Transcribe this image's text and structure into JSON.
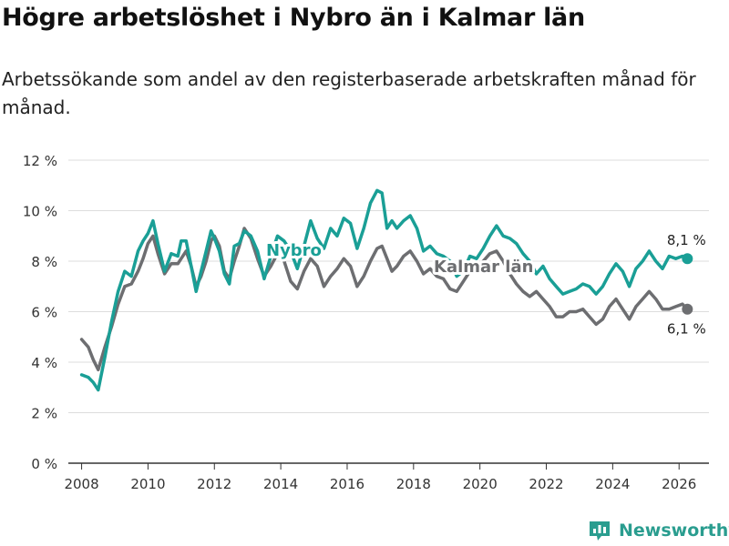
{
  "title": "Högre arbetslöshet i Nybro än i Kalmar län",
  "subtitle": "Arbetssökande som andel av den registerbaserade arbetskraften månad för månad.",
  "brand": {
    "name": "Newsworthy",
    "icon": "bar-chart-logo-icon"
  },
  "colors": {
    "nybro": "#1a9f96",
    "kalmar": "#6d6e71",
    "grid": "#dddddd",
    "text": "#333333"
  },
  "chart_data": {
    "type": "line",
    "title": "Högre arbetslöshet i Nybro än i Kalmar län",
    "xlabel": "",
    "ylabel": "",
    "xlim": [
      2007.6,
      2026.9
    ],
    "ylim": [
      0,
      12
    ],
    "x_ticks": [
      2008,
      2010,
      2012,
      2014,
      2016,
      2018,
      2020,
      2022,
      2024,
      2026
    ],
    "x_tick_labels": [
      "2008",
      "2010",
      "2012",
      "2014",
      "2016",
      "2018",
      "2020",
      "2022",
      "2024",
      "2026"
    ],
    "y_ticks": [
      0,
      2,
      4,
      6,
      8,
      10,
      12
    ],
    "y_tick_labels": [
      "0 %",
      "2 %",
      "4 %",
      "6 %",
      "8 %",
      "10 %",
      "12 %"
    ],
    "grid": true,
    "series": [
      {
        "name": "Nybro",
        "label": "Nybro",
        "end_label": "8,1 %",
        "x": [
          2008.0,
          2008.2,
          2008.35,
          2008.5,
          2008.7,
          2008.9,
          2009.1,
          2009.3,
          2009.5,
          2009.7,
          2009.85,
          2010.0,
          2010.15,
          2010.3,
          2010.5,
          2010.7,
          2010.9,
          2011.0,
          2011.15,
          2011.3,
          2011.45,
          2011.6,
          2011.75,
          2011.9,
          2012.0,
          2012.15,
          2012.3,
          2012.45,
          2012.6,
          2012.75,
          2012.9,
          2013.1,
          2013.3,
          2013.5,
          2013.7,
          2013.9,
          2014.1,
          2014.3,
          2014.5,
          2014.7,
          2014.9,
          2015.1,
          2015.3,
          2015.5,
          2015.7,
          2015.9,
          2016.1,
          2016.3,
          2016.5,
          2016.7,
          2016.9,
          2017.05,
          2017.2,
          2017.35,
          2017.5,
          2017.7,
          2017.9,
          2018.1,
          2018.3,
          2018.5,
          2018.7,
          2018.9,
          2019.1,
          2019.3,
          2019.5,
          2019.7,
          2019.9,
          2020.1,
          2020.3,
          2020.5,
          2020.7,
          2020.9,
          2021.1,
          2021.3,
          2021.5,
          2021.7,
          2021.9,
          2022.1,
          2022.3,
          2022.5,
          2022.7,
          2022.9,
          2023.1,
          2023.3,
          2023.5,
          2023.7,
          2023.9,
          2024.1,
          2024.3,
          2024.5,
          2024.7,
          2024.9,
          2025.1,
          2025.3,
          2025.5,
          2025.7,
          2025.9,
          2026.1,
          2026.25
        ],
        "values": [
          3.5,
          3.4,
          3.2,
          2.9,
          4.2,
          5.6,
          6.8,
          7.6,
          7.4,
          8.4,
          8.8,
          9.1,
          9.6,
          8.7,
          7.6,
          8.3,
          8.2,
          8.8,
          8.8,
          7.8,
          6.8,
          7.6,
          8.4,
          9.2,
          8.9,
          8.4,
          7.5,
          7.1,
          8.6,
          8.7,
          9.2,
          9.0,
          8.4,
          7.3,
          8.2,
          9.0,
          8.8,
          8.4,
          7.7,
          8.6,
          9.6,
          8.9,
          8.5,
          9.3,
          9.0,
          9.7,
          9.5,
          8.5,
          9.3,
          10.3,
          10.8,
          10.7,
          9.3,
          9.6,
          9.3,
          9.6,
          9.8,
          9.3,
          8.4,
          8.6,
          8.3,
          8.2,
          8.0,
          7.4,
          7.6,
          8.2,
          8.1,
          8.5,
          9.0,
          9.4,
          9.0,
          8.9,
          8.7,
          8.3,
          8.0,
          7.5,
          7.8,
          7.3,
          7.0,
          6.7,
          6.8,
          6.9,
          7.1,
          7.0,
          6.7,
          7.0,
          7.5,
          7.9,
          7.6,
          7.0,
          7.7,
          8.0,
          8.4,
          8.0,
          7.7,
          8.2,
          8.1,
          8.2,
          8.1
        ]
      },
      {
        "name": "Kalmar län",
        "label": "Kalmar län",
        "end_label": "6,1 %",
        "x": [
          2008.0,
          2008.2,
          2008.35,
          2008.5,
          2008.7,
          2008.9,
          2009.1,
          2009.3,
          2009.5,
          2009.7,
          2009.85,
          2010.0,
          2010.15,
          2010.3,
          2010.5,
          2010.7,
          2010.9,
          2011.0,
          2011.15,
          2011.3,
          2011.45,
          2011.6,
          2011.75,
          2011.9,
          2012.0,
          2012.15,
          2012.3,
          2012.45,
          2012.6,
          2012.75,
          2012.9,
          2013.1,
          2013.3,
          2013.5,
          2013.7,
          2013.9,
          2014.1,
          2014.3,
          2014.5,
          2014.7,
          2014.9,
          2015.1,
          2015.3,
          2015.5,
          2015.7,
          2015.9,
          2016.1,
          2016.3,
          2016.5,
          2016.7,
          2016.9,
          2017.05,
          2017.2,
          2017.35,
          2017.5,
          2017.7,
          2017.9,
          2018.1,
          2018.3,
          2018.5,
          2018.7,
          2018.9,
          2019.1,
          2019.3,
          2019.5,
          2019.7,
          2019.9,
          2020.1,
          2020.3,
          2020.5,
          2020.7,
          2020.9,
          2021.1,
          2021.3,
          2021.5,
          2021.7,
          2021.9,
          2022.1,
          2022.3,
          2022.5,
          2022.7,
          2022.9,
          2023.1,
          2023.3,
          2023.5,
          2023.7,
          2023.9,
          2024.1,
          2024.3,
          2024.5,
          2024.7,
          2024.9,
          2025.1,
          2025.3,
          2025.5,
          2025.7,
          2025.9,
          2026.1,
          2026.25
        ],
        "values": [
          4.9,
          4.6,
          4.1,
          3.7,
          4.6,
          5.4,
          6.3,
          7.0,
          7.1,
          7.6,
          8.1,
          8.7,
          9.0,
          8.3,
          7.5,
          7.9,
          7.9,
          8.1,
          8.4,
          7.8,
          7.0,
          7.4,
          8.0,
          8.8,
          9.0,
          8.6,
          7.6,
          7.3,
          8.0,
          8.6,
          9.3,
          8.9,
          8.1,
          7.4,
          7.8,
          8.3,
          8.0,
          7.2,
          6.9,
          7.6,
          8.1,
          7.8,
          7.0,
          7.4,
          7.7,
          8.1,
          7.8,
          7.0,
          7.4,
          8.0,
          8.5,
          8.6,
          8.1,
          7.6,
          7.8,
          8.2,
          8.4,
          8.0,
          7.5,
          7.7,
          7.4,
          7.3,
          6.9,
          6.8,
          7.2,
          7.6,
          7.7,
          8.0,
          8.3,
          8.4,
          8.0,
          7.5,
          7.1,
          6.8,
          6.6,
          6.8,
          6.5,
          6.2,
          5.8,
          5.8,
          6.0,
          6.0,
          6.1,
          5.8,
          5.5,
          5.7,
          6.2,
          6.5,
          6.1,
          5.7,
          6.2,
          6.5,
          6.8,
          6.5,
          6.1,
          6.1,
          6.2,
          6.3,
          6.1
        ]
      }
    ]
  }
}
